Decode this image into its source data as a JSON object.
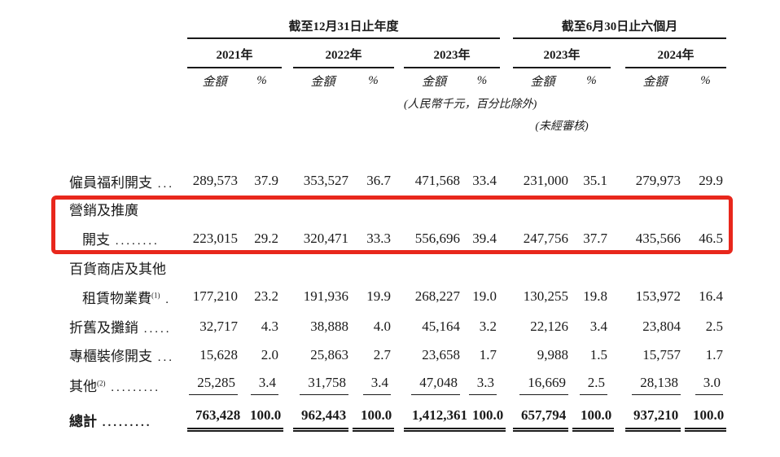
{
  "header": {
    "annual_group": "截至12月31日止年度",
    "interim_group": "截至6月30日止六個月",
    "years": [
      "2021年",
      "2022年",
      "2023年",
      "2023年",
      "2024年"
    ],
    "amount_label": "金額",
    "percent_label": "%",
    "unit_note": "(人民幣千元，百分比除外)",
    "unaudited_note": "(未經審核)"
  },
  "highlight": {
    "color": "#e8271c",
    "purpose": "marketing-and-promotion-expenses-row"
  },
  "rows": [
    {
      "label": "僱員福利開支",
      "sup": "",
      "dots": "...",
      "indent": false,
      "values": [
        "289,573",
        "37.9",
        "353,527",
        "36.7",
        "471,568",
        "33.4",
        "231,000",
        "35.1",
        "279,973",
        "29.9"
      ]
    },
    {
      "label": "營銷及推廣",
      "sup": "",
      "dots": "",
      "indent": false,
      "values": null
    },
    {
      "label": "開支",
      "sup": "",
      "dots": "........",
      "indent": true,
      "values": [
        "223,015",
        "29.2",
        "320,471",
        "33.3",
        "556,696",
        "39.4",
        "247,756",
        "37.7",
        "435,566",
        "46.5"
      ]
    },
    {
      "label": "百貨商店及其他",
      "sup": "",
      "dots": "",
      "indent": false,
      "values": null
    },
    {
      "label": "租賃物業費",
      "sup": "(1)",
      "dots": ".",
      "indent": true,
      "values": [
        "177,210",
        "23.2",
        "191,936",
        "19.9",
        "268,227",
        "19.0",
        "130,255",
        "19.8",
        "153,972",
        "16.4"
      ]
    },
    {
      "label": "折舊及攤銷",
      "sup": "",
      "dots": ".....",
      "indent": false,
      "values": [
        "32,717",
        "4.3",
        "38,888",
        "4.0",
        "45,164",
        "3.2",
        "22,126",
        "3.4",
        "23,804",
        "2.5"
      ]
    },
    {
      "label": "專櫃裝修開支",
      "sup": "",
      "dots": "...",
      "indent": false,
      "values": [
        "15,628",
        "2.0",
        "25,863",
        "2.7",
        "23,658",
        "1.7",
        "9,988",
        "1.5",
        "15,757",
        "1.7"
      ]
    },
    {
      "label": "其他",
      "sup": "(2)",
      "dots": ".........",
      "indent": false,
      "underline": "single",
      "values": [
        "25,285",
        "3.4",
        "31,758",
        "3.4",
        "47,048",
        "3.3",
        "16,669",
        "2.5",
        "28,138",
        "3.0"
      ]
    },
    {
      "label": "總計",
      "sup": "",
      "dots": ".........",
      "indent": false,
      "underline": "double",
      "bold": true,
      "values": [
        "763,428",
        "100.0",
        "962,443",
        "100.0",
        "1,412,361",
        "100.0",
        "657,794",
        "100.0",
        "937,210",
        "100.0"
      ]
    }
  ]
}
